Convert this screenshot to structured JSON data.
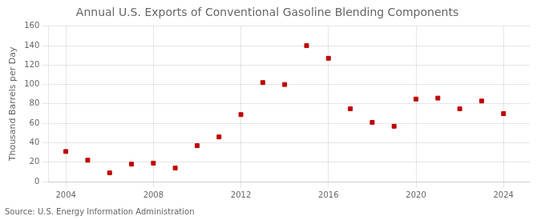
{
  "chart_data": {
    "type": "scatter",
    "title": "Annual U.S. Exports of Conventional Gasoline Blending Components",
    "ylabel": "Thousand Barrels per Day",
    "source": "Source: U.S. Energy Information Administration",
    "x": [
      2004,
      2005,
      2006,
      2007,
      2008,
      2009,
      2010,
      2011,
      2012,
      2013,
      2014,
      2015,
      2016,
      2017,
      2018,
      2019,
      2020,
      2021,
      2022,
      2023,
      2024
    ],
    "values": [
      31,
      22,
      9,
      18,
      19,
      14,
      37,
      46,
      69,
      102,
      100,
      140,
      127,
      75,
      61,
      57,
      85,
      86,
      75,
      83,
      70
    ],
    "color": "#c00000",
    "marker": "square",
    "xlim": [
      2003.2,
      2025.2
    ],
    "xticks": [
      2004,
      2008,
      2012,
      2016,
      2020,
      2024
    ],
    "ylim": [
      0,
      160
    ],
    "yticks": [
      0,
      20,
      40,
      60,
      80,
      100,
      120,
      140,
      160
    ],
    "grid": true
  }
}
